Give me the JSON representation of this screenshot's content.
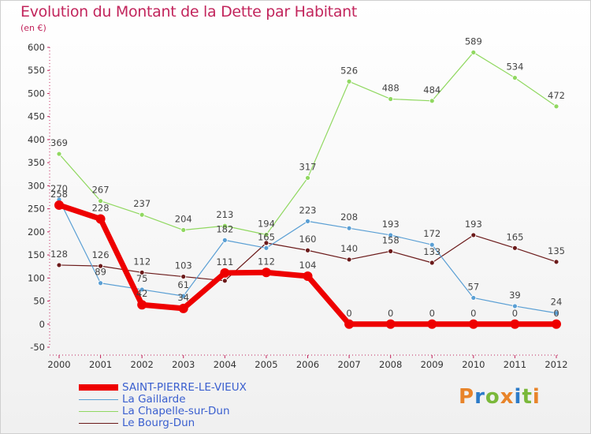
{
  "header": {
    "title": "Evolution du Montant de la Dette par Habitant",
    "subtitle": "(en €)"
  },
  "brand": {
    "text": "Proxiti",
    "colors": [
      "#e8842a",
      "#2c7bc8",
      "#7ab83a",
      "#e8842a",
      "#2c7bc8",
      "#7ab83a",
      "#e8842a"
    ]
  },
  "chart_data": {
    "type": "line",
    "title": "Evolution du Montant de la Dette par Habitant",
    "ylabel": "",
    "xlabel": "",
    "categories": [
      "2000",
      "2001",
      "2002",
      "2003",
      "2004",
      "2005",
      "2006",
      "2007",
      "2008",
      "2009",
      "2010",
      "2011",
      "2012"
    ],
    "ylim": [
      -50,
      600
    ],
    "yticks": [
      -50,
      0,
      50,
      100,
      150,
      200,
      250,
      300,
      350,
      400,
      450,
      500,
      550,
      600
    ],
    "grid": false,
    "legend_position": "bottom-left",
    "series": [
      {
        "name": "Le Bourg-Dun",
        "color": "#6b1a1a",
        "values": [
          128,
          126,
          112,
          103,
          94,
          176,
          160,
          140,
          158,
          133,
          193,
          165,
          135
        ],
        "labels": [
          "128",
          "126",
          "112",
          "103",
          "",
          "",
          "160",
          "140",
          "158",
          "133",
          "193",
          "165",
          "135"
        ]
      },
      {
        "name": "La Gaillarde",
        "color": "#5a9fd4",
        "values": [
          270,
          89,
          75,
          61,
          182,
          165,
          223,
          208,
          193,
          172,
          57,
          39,
          24
        ],
        "labels": [
          "270",
          "89",
          "75",
          "61",
          "182",
          "165",
          "223",
          "208",
          "193",
          "172",
          "57",
          "39",
          "24"
        ]
      },
      {
        "name": "La Chapelle-sur-Dun",
        "color": "#90d860",
        "values": [
          369,
          267,
          237,
          204,
          213,
          194,
          317,
          526,
          488,
          484,
          589,
          534,
          472
        ],
        "labels": [
          "369",
          "267",
          "237",
          "204",
          "213",
          "194",
          "317",
          "526",
          "488",
          "484",
          "589",
          "534",
          "472"
        ]
      },
      {
        "name": "SAINT-PIERRE-LE-VIEUX",
        "color": "#ee0000",
        "values": [
          258,
          228,
          42,
          34,
          111,
          112,
          104,
          0,
          0,
          0,
          0,
          0,
          0
        ],
        "labels": [
          "258",
          "228",
          "42",
          "34",
          "111",
          "112",
          "104",
          "0",
          "0",
          "0",
          "0",
          "0",
          "0"
        ]
      }
    ]
  },
  "legend": [
    {
      "label": "SAINT-PIERRE-LE-VIEUX",
      "color": "#ee0000"
    },
    {
      "label": "La Gaillarde",
      "color": "#5a9fd4"
    },
    {
      "label": "La Chapelle-sur-Dun",
      "color": "#90d860"
    },
    {
      "label": "Le Bourg-Dun",
      "color": "#6b1a1a"
    }
  ]
}
